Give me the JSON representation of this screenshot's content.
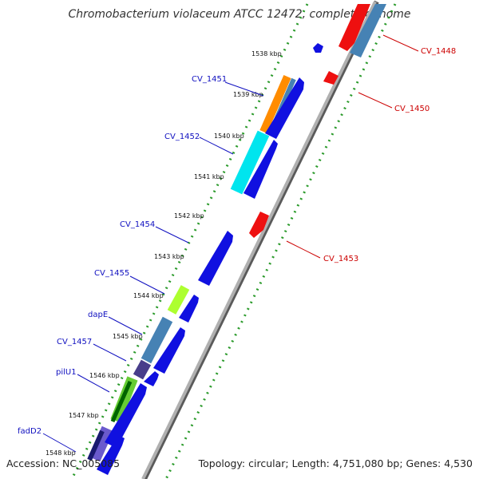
{
  "title": "Chromobacterium violaceum ATCC 12472, complete genome",
  "accession": "Accession: NC_005085",
  "summary": "Topology: circular; Length: 4,751,080 bp; Genes: 4,530",
  "ticks": [
    "1538 kbp",
    "1539 kbp",
    "1540 kbp",
    "1541 kbp",
    "1542 kbp",
    "1543 kbp",
    "1544 kbp",
    "1545 kbp",
    "1546 kbp",
    "1547 kbp",
    "1548 kbp"
  ],
  "labels": {
    "left": [
      "CV_1451",
      "CV_1452",
      "CV_1454",
      "CV_1455",
      "dapE",
      "CV_1457",
      "pilU1",
      "fadD2"
    ],
    "right": [
      "CV_1448",
      "CV_1450",
      "CV_1453"
    ]
  },
  "colors": {
    "blue_label": "#1010c0",
    "red_label": "#cc0000",
    "gene_blue": "#1010e0",
    "gene_red": "#ee1010",
    "backbone": "#8c8c8c",
    "dots": "#2a9a2a"
  }
}
